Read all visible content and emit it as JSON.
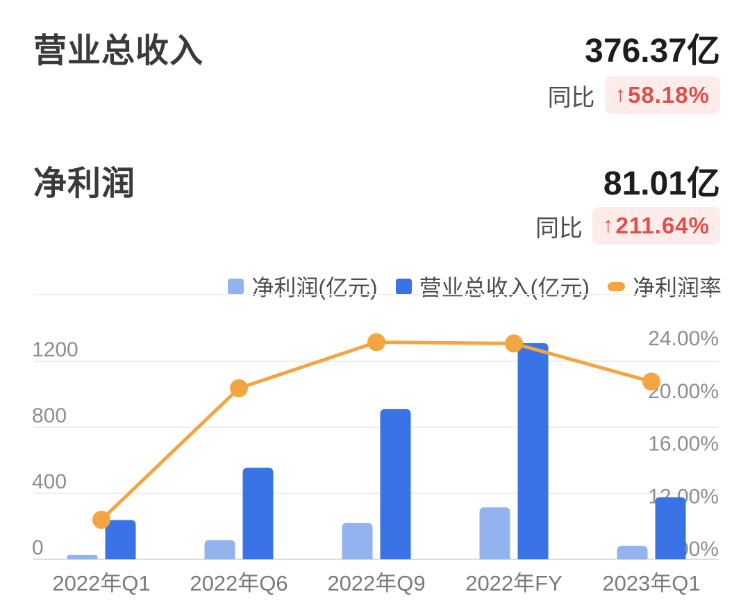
{
  "kpi": {
    "revenue": {
      "label": "营业总收入",
      "value": "376.37亿",
      "yoy_label": "同比",
      "yoy_arrow": "↑",
      "yoy_value": "58.18%"
    },
    "profit": {
      "label": "净利润",
      "value": "81.01亿",
      "yoy_label": "同比",
      "yoy_arrow": "↑",
      "yoy_value": "211.64%"
    }
  },
  "chart_data": {
    "type": "bar",
    "subtype": "grouped-bars-with-line-dual-axis",
    "categories": [
      "2022年Q1",
      "2022年Q6",
      "2022年Q9",
      "2022年FY",
      "2023年Q1"
    ],
    "series": [
      {
        "name": "净利润(亿元)",
        "type": "bar",
        "axis": "left",
        "color": "#92b3ee",
        "values": [
          26,
          117,
          220,
          315,
          81.01
        ]
      },
      {
        "name": "营业总收入(亿元)",
        "type": "bar",
        "axis": "left",
        "color": "#3973e6",
        "values": [
          238,
          555,
          910,
          1310,
          376.37
        ]
      },
      {
        "name": "净利润率",
        "type": "line",
        "axis": "right",
        "color": "#f2a540",
        "values": [
          11.0,
          21.0,
          24.5,
          24.4,
          21.5
        ]
      }
    ],
    "left_axis": {
      "ticks": [
        0,
        400,
        800,
        1200
      ],
      "range": [
        0,
        1200
      ]
    },
    "right_axis": {
      "ticks": [
        "8.00%",
        "12.00%",
        "16.00%",
        "20.00%",
        "24.00%"
      ],
      "tick_values": [
        8,
        12,
        16,
        20,
        24
      ],
      "unit": "%"
    },
    "grid": true,
    "legend_position": "top-right"
  },
  "colors": {
    "badge_background": "#fdecea",
    "badge_text": "#e0504a",
    "title_text": "#3a3a3a",
    "value_text": "#1d1d1d",
    "axis_text": "#8e8e8e",
    "x_axis_text": "#7a7a7a",
    "gridline": "#ededed",
    "baseline": "#dcdcdc"
  }
}
